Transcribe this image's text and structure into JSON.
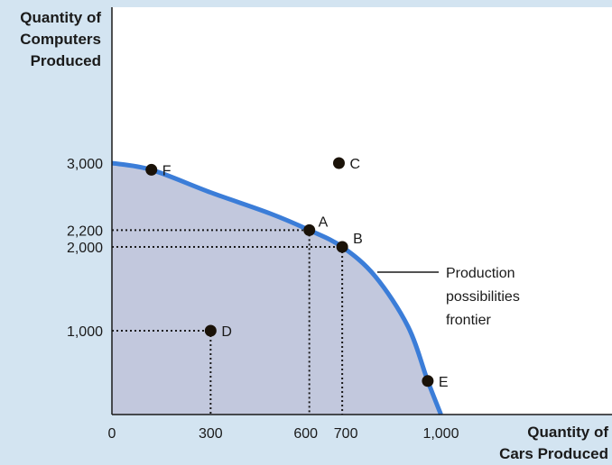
{
  "chart_data": {
    "type": "line",
    "xlabel": [
      "Quantity of",
      "Cars Produced"
    ],
    "ylabel": [
      "Quantity of",
      "Computers",
      "Produced"
    ],
    "x_ticks": [
      {
        "value": 0,
        "label": "0"
      },
      {
        "value": 300,
        "label": "300"
      },
      {
        "value": 600,
        "label": "600"
      },
      {
        "value": 700,
        "label": "700"
      },
      {
        "value": 1000,
        "label": "1,000"
      }
    ],
    "y_ticks": [
      {
        "value": 1000,
        "label": "1,000"
      },
      {
        "value": 2000,
        "label": "2,000"
      },
      {
        "value": 2200,
        "label": "2,200"
      },
      {
        "value": 3000,
        "label": "3,000"
      }
    ],
    "xlim": [
      0,
      1520
    ],
    "ylim": [
      0,
      4860
    ],
    "frontier": {
      "label": [
        "Production",
        "possibilities",
        "frontier"
      ],
      "color": "#3b7dd8",
      "fill": "#c2c8dd",
      "points": [
        [
          0,
          3000
        ],
        [
          120,
          2920
        ],
        [
          300,
          2650
        ],
        [
          480,
          2400
        ],
        [
          600,
          2200
        ],
        [
          700,
          2000
        ],
        [
          800,
          1650
        ],
        [
          900,
          1050
        ],
        [
          960,
          400
        ],
        [
          1000,
          0
        ]
      ]
    },
    "points": [
      {
        "name": "F",
        "x": 120,
        "y": 2920,
        "guides": false
      },
      {
        "name": "C",
        "x": 690,
        "y": 3000,
        "guides": false
      },
      {
        "name": "A",
        "x": 600,
        "y": 2200,
        "guides": true
      },
      {
        "name": "B",
        "x": 700,
        "y": 2000,
        "guides": true
      },
      {
        "name": "D",
        "x": 300,
        "y": 1000,
        "guides": true
      },
      {
        "name": "E",
        "x": 960,
        "y": 400,
        "guides": false
      }
    ]
  }
}
